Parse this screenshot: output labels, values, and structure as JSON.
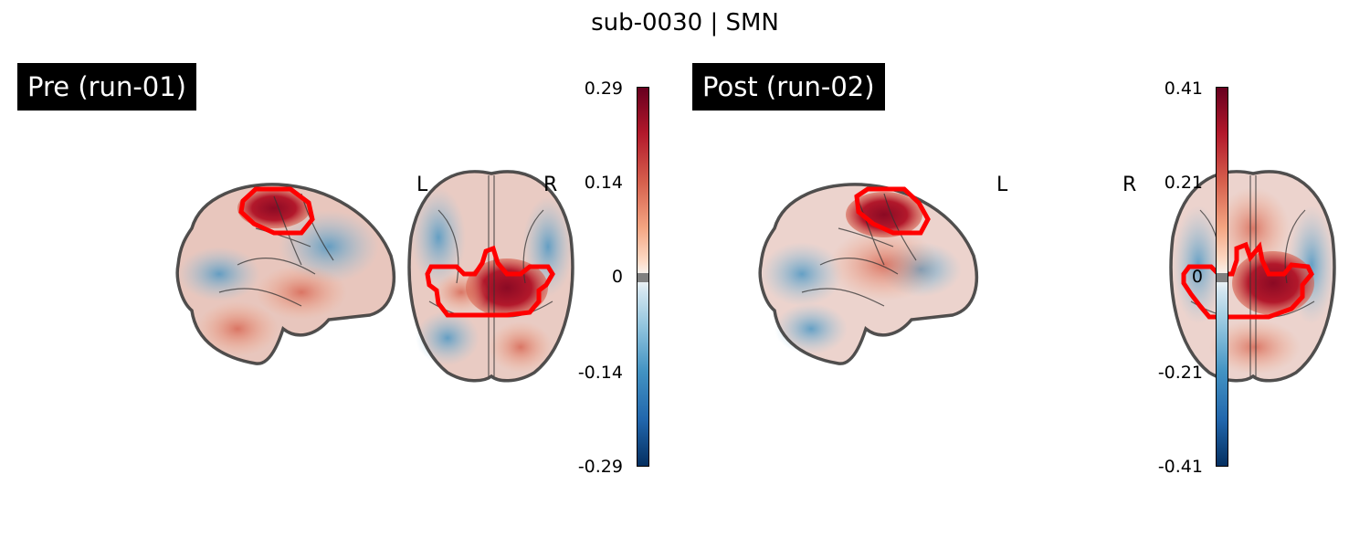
{
  "figure": {
    "title": "sub-0030 | SMN"
  },
  "panels": [
    {
      "label": "Pre (run-01)",
      "left_letter": "L",
      "right_letter": "R",
      "colorbar": {
        "ticks": [
          "0.29",
          "0.14",
          "0",
          "-0.14",
          "-0.29"
        ],
        "colormap": "RdBu_r",
        "range": [
          -0.29,
          0.29
        ]
      }
    },
    {
      "label": "Post (run-02)",
      "left_letter": "L",
      "right_letter": "R",
      "colorbar": {
        "ticks": [
          "0.41",
          "0.21",
          "0",
          "-0.21",
          "-0.41"
        ],
        "colormap": "RdBu_r",
        "range": [
          -0.41,
          0.41
        ]
      }
    }
  ],
  "colors": {
    "roi_outline": "#ff0000",
    "brain_outline": "#333333",
    "label_background": "#000000",
    "label_text": "#ffffff"
  }
}
